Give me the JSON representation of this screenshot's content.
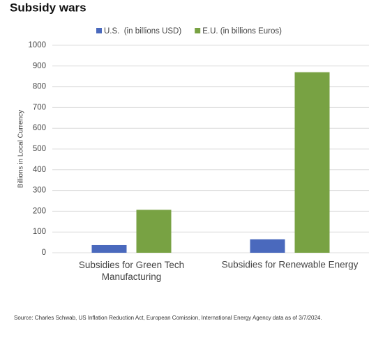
{
  "chart_data": {
    "type": "bar",
    "title": "Subsidy wars",
    "y_label": "Billions in Local Currency",
    "categories": [
      "Subsidies for Green Tech Manufacturing",
      "Subsidies for Renewable Energy"
    ],
    "series": [
      {
        "name": "U.S.  (in billions USD)",
        "color": "#4a69bd",
        "values": [
          37,
          65
        ]
      },
      {
        "name": "E.U. (in billions Euros)",
        "color": "#78a243",
        "values": [
          207,
          870
        ]
      }
    ],
    "ylim": [
      0,
      1000
    ],
    "yticks": [
      0,
      100,
      200,
      300,
      400,
      500,
      600,
      700,
      800,
      900,
      1000
    ],
    "grid": true,
    "legend": "top",
    "source": "Source: Charles Schwab, US Inflation Reduction Act, European Comission, International Energy Agency data as of 3/7/2024."
  }
}
